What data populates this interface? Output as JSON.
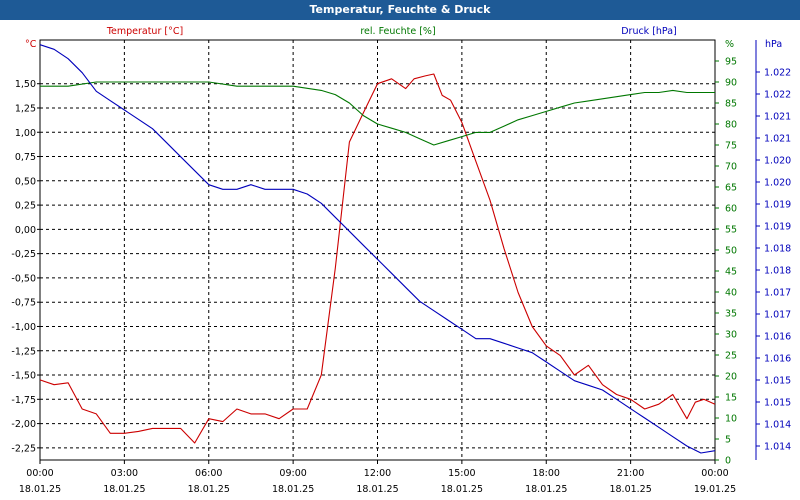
{
  "window": {
    "title": "Temperatur, Feuchte & Druck"
  },
  "colors": {
    "title_bar": "#1e5a96",
    "temperature": "#cc0000",
    "humidity": "#007700",
    "pressure": "#0000bb",
    "grid": "#000000",
    "axis_text": "#000000"
  },
  "chart_data": {
    "type": "line",
    "title": "Temperatur, Feuchte & Druck",
    "grid": true,
    "x_ticks": [
      {
        "t": 0,
        "time": "00:00",
        "date": "18.01.25"
      },
      {
        "t": 3,
        "time": "03:00",
        "date": "18.01.25"
      },
      {
        "t": 6,
        "time": "06:00",
        "date": "18.01.25"
      },
      {
        "t": 9,
        "time": "09:00",
        "date": "18.01.25"
      },
      {
        "t": 12,
        "time": "12:00",
        "date": "18.01.25"
      },
      {
        "t": 15,
        "time": "15:00",
        "date": "18.01.25"
      },
      {
        "t": 18,
        "time": "18:00",
        "date": "18.01.25"
      },
      {
        "t": 21,
        "time": "21:00",
        "date": "18.01.25"
      },
      {
        "t": 24,
        "time": "00:00",
        "date": "19.01.25"
      }
    ],
    "xlim": [
      0,
      24
    ],
    "axes": {
      "temperature": {
        "label": "Temperatur [°C]",
        "unit": "°C",
        "lim": [
          -2.375,
          1.95
        ],
        "ticks": [
          "1,50",
          "1,25",
          "1,00",
          "0,75",
          "0,50",
          "0,25",
          "0,00",
          "-0,25",
          "-0,50",
          "-0,75",
          "-1,00",
          "-1,25",
          "-1,50",
          "-1,75",
          "-2,00",
          "-2,25"
        ],
        "tick_values": [
          1.5,
          1.25,
          1.0,
          0.75,
          0.5,
          0.25,
          0.0,
          -0.25,
          -0.5,
          -0.75,
          -1.0,
          -1.25,
          -1.5,
          -1.75,
          -2.0,
          -2.25
        ]
      },
      "humidity": {
        "label": "rel. Feuchte [%]",
        "unit": "%",
        "lim": [
          0,
          100
        ],
        "ticks": [
          "95",
          "90",
          "85",
          "80",
          "75",
          "70",
          "65",
          "60",
          "55",
          "50",
          "45",
          "40",
          "35",
          "30",
          "25",
          "20",
          "15",
          "10",
          "5",
          "0"
        ],
        "tick_values": [
          95,
          90,
          85,
          80,
          75,
          70,
          65,
          60,
          55,
          50,
          45,
          40,
          35,
          30,
          25,
          20,
          15,
          10,
          5,
          0
        ]
      },
      "pressure": {
        "label": "Druck [hPa]",
        "unit": "hPa",
        "lim": [
          1013.7,
          1022.7
        ],
        "ticks": [
          "1.022",
          "1.022",
          "1.021",
          "1.021",
          "1.020",
          "1.020",
          "1.019",
          "1.019",
          "1.018",
          "1.018",
          "1.017",
          "1.017",
          "1.016",
          "1.016",
          "1.015",
          "1.015",
          "1.014",
          "1.014"
        ]
      }
    },
    "series": [
      {
        "name": "Temperatur [°C]",
        "axis": "temperature",
        "x": [
          0,
          0.5,
          1,
          1.5,
          2,
          2.5,
          3,
          3.5,
          4,
          4.5,
          5,
          5.5,
          6,
          6.5,
          7,
          7.5,
          8,
          8.5,
          9,
          9.5,
          10,
          10.5,
          11,
          11.5,
          12,
          12.5,
          13,
          13.3,
          13.7,
          14,
          14.3,
          14.6,
          15,
          15.5,
          16,
          16.5,
          17,
          17.5,
          18,
          18.5,
          19,
          19.5,
          20,
          20.5,
          21,
          21.5,
          22,
          22.5,
          23,
          23.3,
          23.6,
          24
        ],
        "y": [
          -1.55,
          -1.6,
          -1.58,
          -1.85,
          -1.9,
          -2.1,
          -2.1,
          -2.08,
          -2.05,
          -2.05,
          -2.05,
          -2.2,
          -1.95,
          -1.98,
          -1.85,
          -1.9,
          -1.9,
          -1.95,
          -1.85,
          -1.85,
          -1.5,
          -0.4,
          0.9,
          1.2,
          1.5,
          1.55,
          1.45,
          1.55,
          1.58,
          1.6,
          1.38,
          1.33,
          1.1,
          0.7,
          0.3,
          -0.2,
          -0.65,
          -1.0,
          -1.2,
          -1.3,
          -1.5,
          -1.4,
          -1.6,
          -1.7,
          -1.75,
          -1.85,
          -1.8,
          -1.7,
          -1.95,
          -1.78,
          -1.75,
          -1.8
        ]
      },
      {
        "name": "rel. Feuchte [%]",
        "axis": "humidity",
        "x": [
          0,
          1,
          2,
          3,
          4,
          5,
          6,
          7,
          8,
          9,
          10,
          10.5,
          11,
          11.5,
          12,
          12.5,
          13,
          13.5,
          14,
          14.5,
          15,
          15.5,
          16,
          16.5,
          17,
          17.5,
          18,
          18.5,
          19,
          19.5,
          20,
          20.5,
          21,
          21.5,
          22,
          22.5,
          23,
          23.5,
          24
        ],
        "y": [
          89,
          89,
          90,
          90,
          90,
          90,
          90,
          89,
          89,
          89,
          88,
          87,
          85,
          82,
          80,
          79,
          78,
          76.5,
          75,
          76,
          77,
          78,
          78,
          79.5,
          81,
          82,
          83,
          84,
          85,
          85.5,
          86,
          86.5,
          87,
          87.5,
          87.5,
          88,
          87.5,
          87.5,
          87.5
        ]
      },
      {
        "name": "Druck [hPa]",
        "axis": "pressure",
        "x": [
          0,
          0.5,
          1,
          1.5,
          2,
          2.5,
          3,
          3.5,
          4,
          4.5,
          5,
          5.5,
          6,
          6.5,
          7,
          7.5,
          8,
          8.5,
          9,
          9.5,
          10,
          10.5,
          11,
          11.5,
          12,
          12.5,
          13,
          13.5,
          14,
          14.5,
          15,
          15.5,
          16,
          16.5,
          17,
          17.5,
          18,
          18.5,
          19,
          19.5,
          20,
          20.5,
          21,
          21.5,
          22,
          22.5,
          23,
          23.5,
          24
        ],
        "y": [
          1022.6,
          1022.5,
          1022.3,
          1022.0,
          1021.6,
          1021.4,
          1021.2,
          1021.0,
          1020.8,
          1020.5,
          1020.2,
          1019.9,
          1019.6,
          1019.5,
          1019.5,
          1019.6,
          1019.5,
          1019.5,
          1019.5,
          1019.4,
          1019.2,
          1018.9,
          1018.6,
          1018.3,
          1018.0,
          1017.7,
          1017.4,
          1017.1,
          1016.9,
          1016.7,
          1016.5,
          1016.3,
          1016.3,
          1016.2,
          1016.1,
          1016.0,
          1015.8,
          1015.6,
          1015.4,
          1015.3,
          1015.2,
          1015.0,
          1014.8,
          1014.6,
          1014.4,
          1014.2,
          1014.0,
          1013.85,
          1013.9
        ]
      }
    ]
  }
}
